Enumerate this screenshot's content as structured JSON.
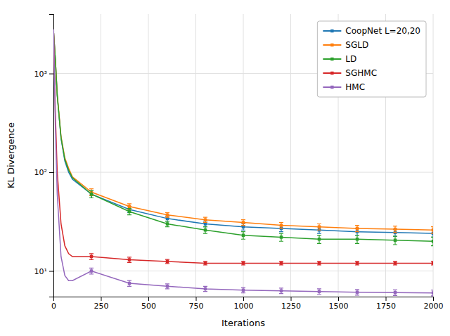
{
  "chart_data": {
    "type": "line",
    "xlabel": "Iterations",
    "ylabel": "KL Divergence",
    "x": [
      1,
      10,
      20,
      40,
      60,
      80,
      100,
      200,
      400,
      600,
      800,
      1000,
      1200,
      1400,
      1600,
      1800,
      2000
    ],
    "xlim": [
      0,
      2000
    ],
    "xticks": [
      0,
      250,
      500,
      750,
      1000,
      1250,
      1500,
      1750,
      2000
    ],
    "ylim": [
      5.5,
      4000
    ],
    "yticks": [
      {
        "value": 10,
        "label": "10¹"
      },
      {
        "value": 100,
        "label": "10²"
      },
      {
        "value": 1000,
        "label": "10³"
      }
    ],
    "log": "y",
    "grid": true,
    "legend": "upper right",
    "marker": "square",
    "series": [
      {
        "name": "CoopNet L=20,20",
        "color": "#1f77b4",
        "values": [
          2600,
          1400,
          600,
          220,
          130,
          100,
          85,
          60,
          42,
          34,
          30,
          28,
          27,
          26,
          25,
          24.5,
          24
        ],
        "errors": [
          null,
          null,
          null,
          null,
          null,
          null,
          null,
          5,
          3,
          2,
          2,
          2,
          2,
          2,
          2,
          2,
          2
        ]
      },
      {
        "name": "SGLD",
        "color": "#ff7f0e",
        "values": [
          2600,
          1400,
          620,
          230,
          140,
          110,
          90,
          63,
          45,
          37,
          33,
          31,
          29,
          28,
          27,
          26.5,
          26
        ],
        "errors": [
          null,
          null,
          null,
          null,
          null,
          null,
          null,
          5,
          3,
          2,
          2,
          2,
          2,
          2,
          2,
          2,
          2
        ]
      },
      {
        "name": "LD",
        "color": "#2ca02c",
        "values": [
          2600,
          1400,
          600,
          225,
          135,
          105,
          88,
          60,
          40,
          30,
          26,
          23,
          22,
          21,
          21,
          20.5,
          20
        ],
        "errors": [
          null,
          null,
          null,
          null,
          null,
          null,
          null,
          5,
          3,
          2,
          2,
          2,
          2,
          2,
          2,
          2,
          2
        ]
      },
      {
        "name": "SGHMC",
        "color": "#d62728",
        "values": [
          2600,
          400,
          100,
          30,
          18,
          15,
          14,
          14,
          13,
          12.5,
          12,
          12,
          12,
          12,
          12,
          12,
          12
        ],
        "errors": [
          null,
          null,
          null,
          null,
          null,
          null,
          null,
          1,
          0.8,
          0.6,
          0.5,
          0.5,
          0.5,
          0.5,
          0.5,
          0.5,
          0.5
        ]
      },
      {
        "name": "HMC",
        "color": "#9467bd",
        "values": [
          2800,
          300,
          60,
          14,
          9,
          8,
          8,
          10,
          7.5,
          7.0,
          6.6,
          6.4,
          6.3,
          6.2,
          6.1,
          6.05,
          6.0
        ],
        "errors": [
          null,
          null,
          null,
          null,
          null,
          null,
          null,
          0.7,
          0.5,
          0.4,
          0.4,
          0.4,
          0.4,
          0.4,
          0.4,
          0.4,
          0.4
        ]
      }
    ]
  }
}
